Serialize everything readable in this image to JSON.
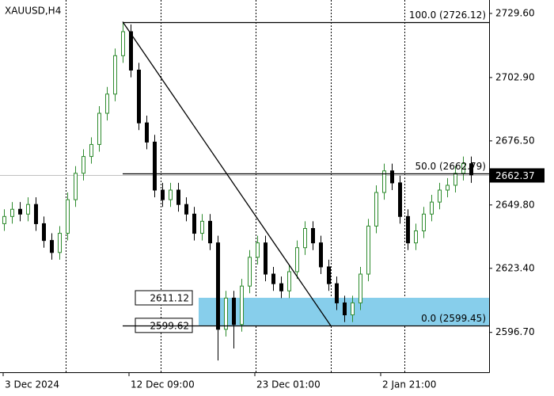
{
  "chart_data": {
    "type": "candlestick",
    "title": "XAUUSD,H4",
    "xlim": [
      -0.5,
      61.3
    ],
    "ylim": [
      2580.1,
      2735.2
    ],
    "yticks": [
      {
        "value": 2729.6,
        "label": "2729.60"
      },
      {
        "value": 2702.9,
        "label": "2702.90"
      },
      {
        "value": 2676.5,
        "label": "2676.50"
      },
      {
        "value": 2649.8,
        "label": "2649.80"
      },
      {
        "value": 2623.4,
        "label": "2623.40"
      },
      {
        "value": 2596.7,
        "label": "2596.70"
      }
    ],
    "xticks": [
      {
        "value": -0.1,
        "label": "3 Dec 2024"
      },
      {
        "value": 15.8,
        "label": "12 Dec 09:00"
      },
      {
        "value": 31.7,
        "label": "23 Dec 01:00"
      },
      {
        "value": 47.6,
        "label": "2 Jan 21:00"
      }
    ],
    "xgrid": [
      7.8,
      19.8,
      31.8,
      41.3,
      50.6
    ],
    "bull_color": "#2e8b2e",
    "bear_color": "#000000",
    "open": [
      2642,
      2645,
      2648,
      2646,
      2650,
      2642,
      2635,
      2630,
      2638,
      2652,
      2663,
      2670,
      2675,
      2688,
      2696,
      2712,
      2722,
      2706,
      2684,
      2676,
      2656,
      2652,
      2656,
      2650,
      2646,
      2638,
      2643,
      2634,
      2598,
      2611,
      2600,
      2616,
      2628,
      2634,
      2621,
      2617,
      2614,
      2622,
      2632,
      2640,
      2634,
      2624,
      2617,
      2609,
      2604,
      2609,
      2621,
      2641,
      2655,
      2664,
      2659,
      2645,
      2634,
      2639,
      2646,
      2651,
      2656,
      2658,
      2663,
      2667
    ],
    "high": [
      2648,
      2651,
      2651,
      2653,
      2653,
      2645,
      2638,
      2641,
      2655,
      2666,
      2673,
      2678,
      2691,
      2699,
      2715,
      2726.12,
      2725,
      2709,
      2687,
      2679,
      2659,
      2659,
      2659,
      2653,
      2649,
      2646,
      2646,
      2637,
      2614,
      2614,
      2619,
      2631,
      2637,
      2637,
      2624,
      2620,
      2625,
      2635,
      2643,
      2643,
      2637,
      2627,
      2620,
      2612,
      2612,
      2624,
      2644,
      2658,
      2667,
      2667,
      2662,
      2648,
      2642,
      2649,
      2654,
      2659,
      2661,
      2666,
      2670,
      2670
    ],
    "low": [
      2639,
      2642,
      2643,
      2643,
      2639,
      2632,
      2627,
      2627,
      2635,
      2649,
      2660,
      2667,
      2672,
      2685,
      2693,
      2709,
      2703,
      2681,
      2673,
      2653,
      2649,
      2649,
      2647,
      2643,
      2635,
      2635,
      2631,
      2585,
      2595,
      2590,
      2597,
      2613,
      2625,
      2618,
      2614,
      2611,
      2611,
      2619,
      2629,
      2631,
      2621,
      2614,
      2606,
      2601,
      2601,
      2606,
      2618,
      2638,
      2652,
      2656,
      2642,
      2631,
      2631,
      2636,
      2643,
      2648,
      2653,
      2655,
      2660,
      2659
    ],
    "close": [
      2645,
      2648,
      2646,
      2650,
      2642,
      2635,
      2630,
      2638,
      2652,
      2663,
      2670,
      2675,
      2688,
      2696,
      2712,
      2722,
      2706,
      2684,
      2676,
      2656,
      2652,
      2656,
      2650,
      2646,
      2638,
      2643,
      2634,
      2598,
      2611,
      2600,
      2616,
      2628,
      2634,
      2621,
      2617,
      2614,
      2622,
      2632,
      2640,
      2634,
      2624,
      2617,
      2609,
      2604,
      2609,
      2621,
      2641,
      2655,
      2664,
      2659,
      2645,
      2634,
      2639,
      2646,
      2651,
      2656,
      2658,
      2663,
      2667,
      2662.37
    ],
    "fibonacci": {
      "x_start": 15,
      "x_end": 41.3,
      "levels": [
        {
          "value": 2726.12,
          "label": "100.0 (2726.12)"
        },
        {
          "value": 2662.79,
          "label": "50.0 (2662.79)"
        },
        {
          "value": 2599.45,
          "label": "0.0 (2599.45)"
        }
      ]
    },
    "zone": {
      "x_start": 24.6,
      "top": 2611.12,
      "bottom": 2599.62,
      "color": "#87ceeb"
    }
  }
}
